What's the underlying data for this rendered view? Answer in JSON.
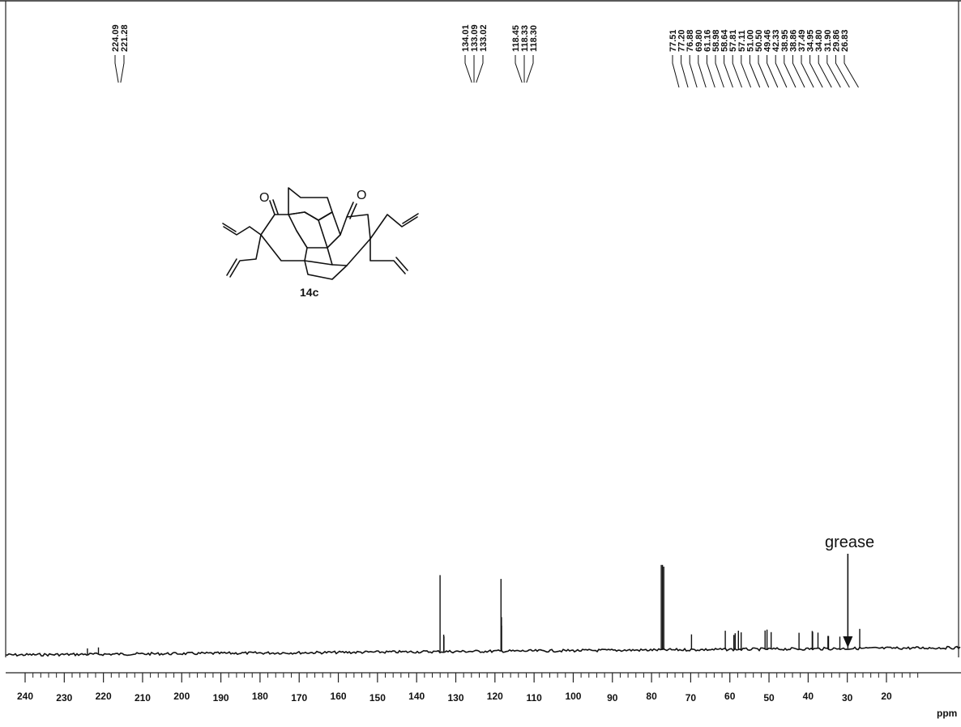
{
  "chart_data": {
    "type": "line",
    "title": "",
    "xlabel": "ppm",
    "ylabel": "",
    "xlim": [
      245,
      0
    ],
    "x_reversed": true,
    "grid": false,
    "legend": "none",
    "x_ticks": [
      240,
      230,
      220,
      210,
      200,
      190,
      180,
      170,
      160,
      150,
      140,
      130,
      120,
      110,
      100,
      90,
      80,
      70,
      60,
      50,
      40,
      30,
      20
    ],
    "x_tick_labels": [
      "240",
      "230",
      "220",
      "210",
      "200",
      "190",
      "180",
      "170",
      "160",
      "150",
      "140",
      "130",
      "120",
      "110",
      "100",
      "90",
      "80",
      "70",
      "60",
      "50",
      "40",
      "30",
      "20"
    ],
    "peak_groups": [
      {
        "labels": [
          "224.09",
          "221.28"
        ]
      },
      {
        "labels": [
          "134.01",
          "133.09",
          "133.02"
        ]
      },
      {
        "labels": [
          "118.45",
          "118.33",
          "118.30"
        ]
      },
      {
        "labels": [
          "77.51",
          "77.20",
          "76.88",
          "69.80",
          "61.16",
          "58.98",
          "58.64",
          "57.81",
          "57.11",
          "51.00",
          "50.50",
          "49.46",
          "42.33",
          "38.95",
          "38.86",
          "37.49",
          "34.95",
          "34.80",
          "31.90",
          "29.86",
          "26.83"
        ]
      }
    ],
    "peaks": [
      {
        "ppm": 224.09,
        "height": 0.07
      },
      {
        "ppm": 221.28,
        "height": 0.08
      },
      {
        "ppm": 134.01,
        "height": 0.9
      },
      {
        "ppm": 133.09,
        "height": 0.2
      },
      {
        "ppm": 133.02,
        "height": 0.18
      },
      {
        "ppm": 118.45,
        "height": 0.85
      },
      {
        "ppm": 118.33,
        "height": 0.4
      },
      {
        "ppm": 118.3,
        "height": 0.3
      },
      {
        "ppm": 77.51,
        "height": 1.0
      },
      {
        "ppm": 77.2,
        "height": 1.0
      },
      {
        "ppm": 76.88,
        "height": 0.98
      },
      {
        "ppm": 69.8,
        "height": 0.18
      },
      {
        "ppm": 61.16,
        "height": 0.22
      },
      {
        "ppm": 58.98,
        "height": 0.17
      },
      {
        "ppm": 58.64,
        "height": 0.19
      },
      {
        "ppm": 57.81,
        "height": 0.22
      },
      {
        "ppm": 57.11,
        "height": 0.2
      },
      {
        "ppm": 51.0,
        "height": 0.22
      },
      {
        "ppm": 50.5,
        "height": 0.23
      },
      {
        "ppm": 49.46,
        "height": 0.2
      },
      {
        "ppm": 42.33,
        "height": 0.19
      },
      {
        "ppm": 38.95,
        "height": 0.21
      },
      {
        "ppm": 38.86,
        "height": 0.2
      },
      {
        "ppm": 37.49,
        "height": 0.19
      },
      {
        "ppm": 34.95,
        "height": 0.15
      },
      {
        "ppm": 34.8,
        "height": 0.15
      },
      {
        "ppm": 31.9,
        "height": 0.14
      },
      {
        "ppm": 29.86,
        "height": 0.1
      },
      {
        "ppm": 26.83,
        "height": 0.23
      }
    ],
    "annotations": [
      {
        "text": "grease",
        "ppm": 29.86
      }
    ],
    "compound_label": "14c",
    "atom_labels": [
      "O",
      "O"
    ]
  }
}
